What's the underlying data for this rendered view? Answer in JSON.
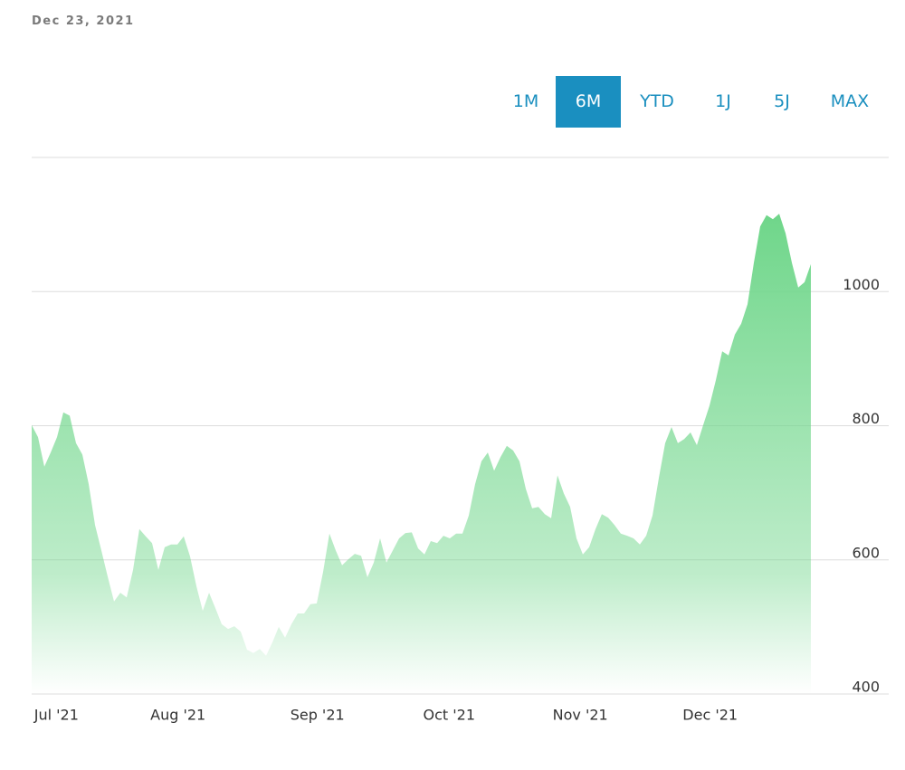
{
  "header": {
    "date": "Dec 23, 2021"
  },
  "range_selector": {
    "options": [
      "1M",
      "6M",
      "YTD",
      "1J",
      "5J",
      "MAX"
    ],
    "selected": "6M"
  },
  "chart_data": {
    "type": "area",
    "color": "#6fd68a",
    "values": [
      801,
      783,
      739,
      760,
      783,
      820,
      815,
      774,
      757,
      713,
      652,
      614,
      575,
      538,
      551,
      544,
      585,
      646,
      635,
      625,
      585,
      619,
      623,
      623,
      635,
      605,
      561,
      524,
      551,
      528,
      504,
      497,
      501,
      493,
      466,
      461,
      467,
      457,
      477,
      500,
      484,
      504,
      520,
      520,
      534,
      535,
      582,
      639,
      614,
      592,
      601,
      609,
      606,
      574,
      596,
      632,
      596,
      614,
      632,
      640,
      641,
      617,
      608,
      628,
      625,
      636,
      632,
      639,
      639,
      666,
      713,
      747,
      760,
      733,
      753,
      770,
      763,
      747,
      706,
      677,
      679,
      668,
      662,
      726,
      699,
      679,
      632,
      608,
      619,
      646,
      668,
      663,
      652,
      639,
      636,
      632,
      623,
      636,
      666,
      722,
      774,
      798,
      774,
      780,
      790,
      771,
      801,
      830,
      868,
      911,
      905,
      936,
      952,
      981,
      1043,
      1097,
      1114,
      1108,
      1116,
      1087,
      1043,
      1006,
      1014,
      1041
    ],
    "xlim": [
      0,
      123
    ],
    "xticks": [
      {
        "value": 3.9,
        "label": "Jul '21"
      },
      {
        "value": 23.1,
        "label": "Aug '21"
      },
      {
        "value": 45.1,
        "label": "Sep '21"
      },
      {
        "value": 65.9,
        "label": "Oct '21"
      },
      {
        "value": 86.6,
        "label": "Nov '21"
      },
      {
        "value": 107.1,
        "label": "Dec '21"
      }
    ],
    "ylim": [
      400,
      1200
    ],
    "yticks": [
      400,
      600,
      800,
      1000
    ],
    "grid": true
  }
}
